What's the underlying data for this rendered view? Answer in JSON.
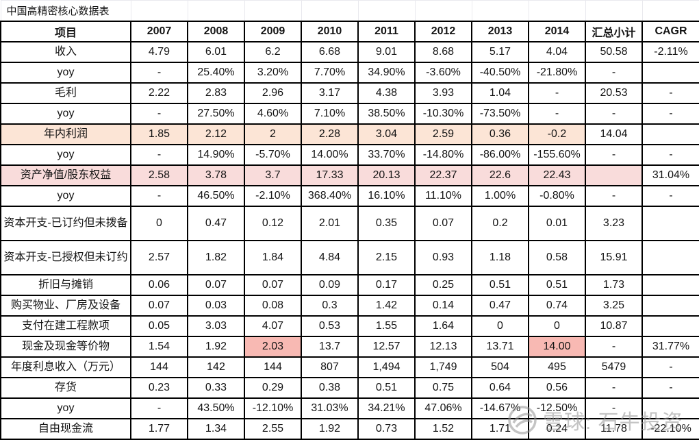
{
  "title": "中国高精密核心数据表",
  "colors": {
    "row_highlight_peach": "#fce5d6",
    "row_highlight_pink": "#f9dcdb",
    "cell_highlight_salmon": "#f8b9b3",
    "table_border": "#000000",
    "faint_gridline": "#e9e9ee",
    "watermark_gray": "#949494"
  },
  "watermark": {
    "icon": "xueqiu-snowball-icon",
    "text": "雪球: 石牛投资"
  },
  "table": {
    "headers": [
      "项目",
      "2007",
      "2008",
      "2009",
      "2010",
      "2011",
      "2012",
      "2013",
      "2014",
      "汇总小计",
      "CAGR"
    ],
    "rows": [
      {
        "cells": [
          "收入",
          "4.79",
          "6.01",
          "6.2",
          "6.68",
          "9.01",
          "8.68",
          "5.17",
          "4.04",
          "50.58",
          "-2.11%"
        ]
      },
      {
        "cells": [
          "yoy",
          "-",
          "25.40%",
          "3.20%",
          "7.70%",
          "34.90%",
          "-3.60%",
          "-40.50%",
          "-21.80%",
          "-",
          ""
        ]
      },
      {
        "cells": [
          "毛利",
          "2.22",
          "2.83",
          "2.96",
          "3.17",
          "4.38",
          "3.93",
          "1.04",
          "-",
          "20.53",
          "-"
        ]
      },
      {
        "cells": [
          "yoy",
          "-",
          "27.50%",
          "4.60%",
          "7.10%",
          "38.50%",
          "-10.30%",
          "-73.50%",
          "-",
          "-",
          "-"
        ]
      },
      {
        "cells": [
          "年内利润",
          "1.85",
          "2.12",
          "2",
          "2.28",
          "3.04",
          "2.59",
          "0.36",
          "-0.2",
          "14.04",
          ""
        ],
        "bg": [
          "peach",
          "peach",
          "peach",
          "peach",
          "peach",
          "peach",
          "peach",
          "peach",
          "peach",
          "",
          ""
        ]
      },
      {
        "cells": [
          "yoy",
          "-",
          "14.90%",
          "-5.70%",
          "14.00%",
          "33.70%",
          "-14.80%",
          "-86.00%",
          "-155.60%",
          "-",
          "-"
        ]
      },
      {
        "cells": [
          "资产净值/股东权益",
          "2.58",
          "3.78",
          "3.7",
          "17.33",
          "20.13",
          "22.37",
          "22.6",
          "22.43",
          "",
          "31.04%"
        ],
        "bg": [
          "pink",
          "pink",
          "pink",
          "pink",
          "pink",
          "pink",
          "pink",
          "pink",
          "pink",
          "pink",
          ""
        ]
      },
      {
        "cells": [
          "yoy",
          "-",
          "46.50%",
          "-2.10%",
          "368.40%",
          "16.10%",
          "11.10%",
          "1.00%",
          "-0.80%",
          "-",
          "-"
        ]
      },
      {
        "cells": [
          "资本开支-已订约但未拨备",
          "0",
          "0.47",
          "0.12",
          "2.01",
          "0.35",
          "0.07",
          "0.2",
          "0.01",
          "3.23",
          ""
        ],
        "tall": true
      },
      {
        "cells": [
          "资本开支-已授权但未订约",
          "2.57",
          "1.82",
          "1.84",
          "4.84",
          "2.15",
          "0.93",
          "1.18",
          "0.58",
          "15.91",
          ""
        ],
        "tall": true
      },
      {
        "cells": [
          "折旧与摊销",
          "0.06",
          "0.07",
          "0.07",
          "0.09",
          "0.17",
          "0.25",
          "0.51",
          "0.51",
          "1.73",
          ""
        ]
      },
      {
        "cells": [
          "购买物业、厂房及设备",
          "0.07",
          "0.03",
          "0.08",
          "0.3",
          "1.42",
          "0.14",
          "0.47",
          "0.74",
          "3.25",
          ""
        ]
      },
      {
        "cells": [
          "支付在建工程款项",
          "0.05",
          "3.03",
          "4.07",
          "0.53",
          "1.55",
          "1.64",
          "0",
          "0",
          "10.87",
          ""
        ]
      },
      {
        "cells": [
          "现金及现金等价物",
          "1.54",
          "1.92",
          "2.03",
          "13.7",
          "12.57",
          "12.13",
          "13.71",
          "14.00",
          "-",
          "31.77%"
        ],
        "bg": [
          "",
          "",
          "",
          "salmon",
          "",
          "",
          "",
          "",
          "salmon",
          "",
          ""
        ]
      },
      {
        "cells": [
          "年度利息收入（万元）",
          "144",
          "142",
          "144",
          "807",
          "1,494",
          "1,749",
          "504",
          "495",
          "5479",
          "-"
        ]
      },
      {
        "cells": [
          "存货",
          "0.23",
          "0.33",
          "0.29",
          "0.38",
          "0.51",
          "0.75",
          "0.64",
          "0.56",
          "-",
          "-"
        ]
      },
      {
        "cells": [
          "yoy",
          "-",
          "43.50%",
          "-12.10%",
          "31.03%",
          "34.21%",
          "47.06%",
          "-14.67%",
          "-12.50%",
          "-",
          ""
        ]
      },
      {
        "cells": [
          "自由现金流",
          "1.77",
          "1.34",
          "2.55",
          "1.92",
          "0.73",
          "1.52",
          "1.71",
          "0.24",
          "11.78",
          "-22.10%"
        ]
      }
    ]
  }
}
